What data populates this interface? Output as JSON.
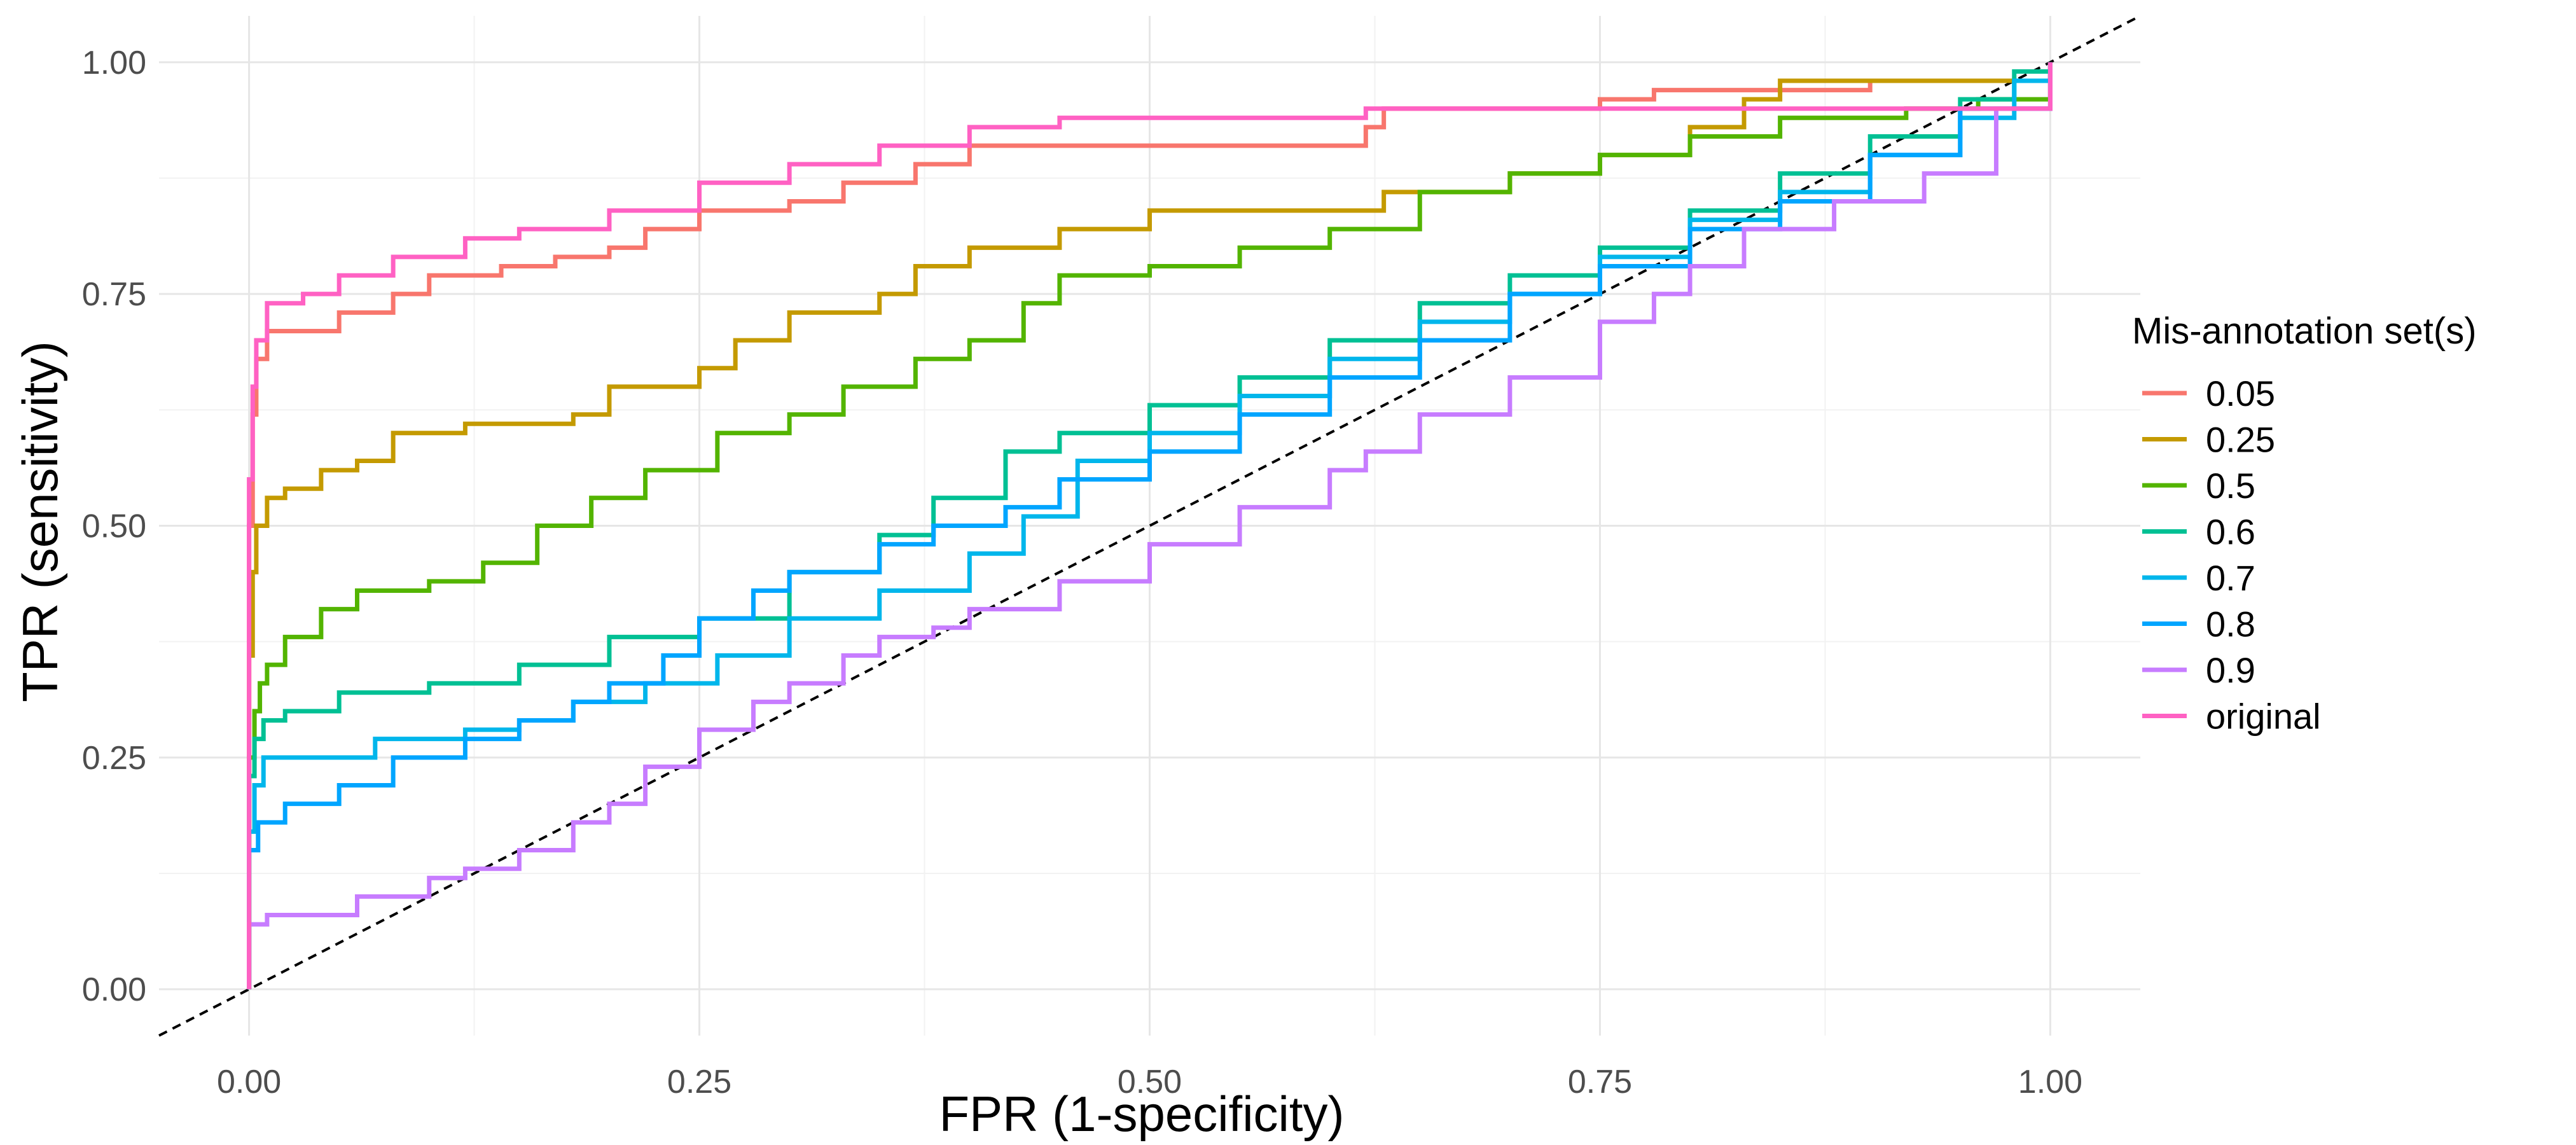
{
  "chart_data": {
    "type": "line",
    "title": "",
    "xlabel": "FPR (1-specificity)",
    "ylabel": "TPR (sensitivity)",
    "xlim": [
      -0.05,
      1.05
    ],
    "ylim": [
      -0.05,
      1.05
    ],
    "x_ticks": [
      0,
      0.25,
      0.5,
      0.75,
      1
    ],
    "x_tick_labels": [
      "0.00",
      "0.25",
      "0.50",
      "0.75",
      "1.00"
    ],
    "y_ticks": [
      0,
      0.25,
      0.5,
      0.75,
      1
    ],
    "y_tick_labels": [
      "0.00",
      "0.25",
      "0.50",
      "0.75",
      "1.00"
    ],
    "grid": true,
    "legend": {
      "title": "Mis-annotation set(s)",
      "position": "right"
    },
    "reference_line": {
      "style": "dashed",
      "color": "#000000",
      "slope": 1,
      "intercept": 0
    },
    "series": [
      {
        "name": "0.05",
        "color": "#F8766D",
        "points": [
          [
            0,
            0
          ],
          [
            0,
            0.5
          ],
          [
            0.002,
            0.62
          ],
          [
            0.004,
            0.68
          ],
          [
            0.01,
            0.71
          ],
          [
            0.03,
            0.71
          ],
          [
            0.05,
            0.73
          ],
          [
            0.08,
            0.75
          ],
          [
            0.1,
            0.77
          ],
          [
            0.14,
            0.78
          ],
          [
            0.17,
            0.79
          ],
          [
            0.2,
            0.8
          ],
          [
            0.22,
            0.82
          ],
          [
            0.25,
            0.84
          ],
          [
            0.3,
            0.85
          ],
          [
            0.33,
            0.87
          ],
          [
            0.37,
            0.89
          ],
          [
            0.4,
            0.91
          ],
          [
            0.5,
            0.91
          ],
          [
            0.55,
            0.91
          ],
          [
            0.6,
            0.91
          ],
          [
            0.62,
            0.93
          ],
          [
            0.63,
            0.95
          ],
          [
            0.7,
            0.95
          ],
          [
            0.75,
            0.96
          ],
          [
            0.78,
            0.97
          ],
          [
            0.85,
            0.97
          ],
          [
            0.9,
            0.98
          ],
          [
            1,
            1
          ]
        ]
      },
      {
        "name": "0.25",
        "color": "#C49A00",
        "points": [
          [
            0,
            0
          ],
          [
            0,
            0.36
          ],
          [
            0.002,
            0.45
          ],
          [
            0.004,
            0.5
          ],
          [
            0.01,
            0.53
          ],
          [
            0.02,
            0.54
          ],
          [
            0.04,
            0.56
          ],
          [
            0.06,
            0.57
          ],
          [
            0.08,
            0.6
          ],
          [
            0.12,
            0.61
          ],
          [
            0.18,
            0.62
          ],
          [
            0.2,
            0.65
          ],
          [
            0.25,
            0.67
          ],
          [
            0.27,
            0.7
          ],
          [
            0.3,
            0.73
          ],
          [
            0.35,
            0.75
          ],
          [
            0.37,
            0.78
          ],
          [
            0.4,
            0.8
          ],
          [
            0.45,
            0.82
          ],
          [
            0.5,
            0.84
          ],
          [
            0.6,
            0.84
          ],
          [
            0.63,
            0.86
          ],
          [
            0.7,
            0.88
          ],
          [
            0.75,
            0.9
          ],
          [
            0.8,
            0.93
          ],
          [
            0.83,
            0.96
          ],
          [
            0.85,
            0.98
          ],
          [
            0.95,
            0.98
          ],
          [
            1,
            1
          ]
        ]
      },
      {
        "name": "0.5",
        "color": "#53B400",
        "points": [
          [
            0,
            0
          ],
          [
            0,
            0.25
          ],
          [
            0.003,
            0.3
          ],
          [
            0.006,
            0.33
          ],
          [
            0.01,
            0.35
          ],
          [
            0.02,
            0.38
          ],
          [
            0.04,
            0.41
          ],
          [
            0.06,
            0.43
          ],
          [
            0.1,
            0.44
          ],
          [
            0.13,
            0.46
          ],
          [
            0.16,
            0.5
          ],
          [
            0.19,
            0.53
          ],
          [
            0.22,
            0.56
          ],
          [
            0.26,
            0.6
          ],
          [
            0.3,
            0.62
          ],
          [
            0.33,
            0.65
          ],
          [
            0.37,
            0.68
          ],
          [
            0.4,
            0.7
          ],
          [
            0.43,
            0.74
          ],
          [
            0.45,
            0.77
          ],
          [
            0.5,
            0.78
          ],
          [
            0.55,
            0.8
          ],
          [
            0.6,
            0.82
          ],
          [
            0.65,
            0.86
          ],
          [
            0.7,
            0.88
          ],
          [
            0.75,
            0.9
          ],
          [
            0.8,
            0.92
          ],
          [
            0.85,
            0.94
          ],
          [
            0.92,
            0.95
          ],
          [
            0.96,
            0.96
          ],
          [
            1,
            1
          ]
        ]
      },
      {
        "name": "0.6",
        "color": "#00C094",
        "points": [
          [
            0,
            0
          ],
          [
            0,
            0.23
          ],
          [
            0.003,
            0.27
          ],
          [
            0.008,
            0.29
          ],
          [
            0.02,
            0.3
          ],
          [
            0.05,
            0.32
          ],
          [
            0.1,
            0.33
          ],
          [
            0.15,
            0.35
          ],
          [
            0.2,
            0.38
          ],
          [
            0.25,
            0.4
          ],
          [
            0.3,
            0.45
          ],
          [
            0.35,
            0.49
          ],
          [
            0.38,
            0.53
          ],
          [
            0.42,
            0.58
          ],
          [
            0.45,
            0.6
          ],
          [
            0.5,
            0.63
          ],
          [
            0.55,
            0.66
          ],
          [
            0.6,
            0.7
          ],
          [
            0.65,
            0.74
          ],
          [
            0.7,
            0.77
          ],
          [
            0.75,
            0.8
          ],
          [
            0.8,
            0.84
          ],
          [
            0.85,
            0.88
          ],
          [
            0.9,
            0.92
          ],
          [
            0.95,
            0.96
          ],
          [
            0.98,
            0.99
          ],
          [
            1,
            1
          ]
        ]
      },
      {
        "name": "0.7",
        "color": "#00B6EB",
        "points": [
          [
            0,
            0
          ],
          [
            0,
            0.17
          ],
          [
            0.003,
            0.22
          ],
          [
            0.008,
            0.25
          ],
          [
            0.05,
            0.25
          ],
          [
            0.07,
            0.27
          ],
          [
            0.1,
            0.27
          ],
          [
            0.12,
            0.28
          ],
          [
            0.15,
            0.29
          ],
          [
            0.18,
            0.31
          ],
          [
            0.22,
            0.33
          ],
          [
            0.26,
            0.36
          ],
          [
            0.3,
            0.4
          ],
          [
            0.35,
            0.43
          ],
          [
            0.4,
            0.47
          ],
          [
            0.43,
            0.51
          ],
          [
            0.46,
            0.57
          ],
          [
            0.5,
            0.6
          ],
          [
            0.55,
            0.64
          ],
          [
            0.6,
            0.68
          ],
          [
            0.65,
            0.72
          ],
          [
            0.7,
            0.75
          ],
          [
            0.75,
            0.79
          ],
          [
            0.8,
            0.83
          ],
          [
            0.85,
            0.86
          ],
          [
            0.9,
            0.9
          ],
          [
            0.95,
            0.94
          ],
          [
            0.98,
            0.98
          ],
          [
            1,
            1
          ]
        ]
      },
      {
        "name": "0.8",
        "color": "#00A5FF",
        "points": [
          [
            0,
            0
          ],
          [
            0,
            0.15
          ],
          [
            0.005,
            0.18
          ],
          [
            0.02,
            0.2
          ],
          [
            0.05,
            0.22
          ],
          [
            0.08,
            0.25
          ],
          [
            0.12,
            0.27
          ],
          [
            0.15,
            0.29
          ],
          [
            0.18,
            0.31
          ],
          [
            0.2,
            0.33
          ],
          [
            0.23,
            0.36
          ],
          [
            0.25,
            0.4
          ],
          [
            0.28,
            0.43
          ],
          [
            0.3,
            0.45
          ],
          [
            0.35,
            0.48
          ],
          [
            0.38,
            0.5
          ],
          [
            0.42,
            0.52
          ],
          [
            0.45,
            0.55
          ],
          [
            0.5,
            0.58
          ],
          [
            0.55,
            0.62
          ],
          [
            0.6,
            0.66
          ],
          [
            0.65,
            0.7
          ],
          [
            0.7,
            0.75
          ],
          [
            0.75,
            0.78
          ],
          [
            0.8,
            0.82
          ],
          [
            0.85,
            0.85
          ],
          [
            0.9,
            0.9
          ],
          [
            0.95,
            0.95
          ],
          [
            1,
            1
          ]
        ]
      },
      {
        "name": "0.9",
        "color": "#C77CFF",
        "points": [
          [
            0,
            0
          ],
          [
            0,
            0.07
          ],
          [
            0.01,
            0.08
          ],
          [
            0.04,
            0.08
          ],
          [
            0.06,
            0.1
          ],
          [
            0.1,
            0.12
          ],
          [
            0.12,
            0.13
          ],
          [
            0.15,
            0.15
          ],
          [
            0.18,
            0.18
          ],
          [
            0.2,
            0.2
          ],
          [
            0.22,
            0.24
          ],
          [
            0.25,
            0.28
          ],
          [
            0.28,
            0.31
          ],
          [
            0.3,
            0.33
          ],
          [
            0.33,
            0.36
          ],
          [
            0.35,
            0.38
          ],
          [
            0.38,
            0.39
          ],
          [
            0.4,
            0.41
          ],
          [
            0.45,
            0.44
          ],
          [
            0.5,
            0.48
          ],
          [
            0.55,
            0.52
          ],
          [
            0.6,
            0.56
          ],
          [
            0.62,
            0.58
          ],
          [
            0.65,
            0.62
          ],
          [
            0.7,
            0.66
          ],
          [
            0.75,
            0.72
          ],
          [
            0.78,
            0.75
          ],
          [
            0.8,
            0.78
          ],
          [
            0.83,
            0.82
          ],
          [
            0.88,
            0.85
          ],
          [
            0.93,
            0.88
          ],
          [
            0.97,
            0.95
          ],
          [
            1,
            1
          ]
        ]
      },
      {
        "name": "original",
        "color": "#FF61C3",
        "points": [
          [
            0,
            0
          ],
          [
            0,
            0.55
          ],
          [
            0.002,
            0.65
          ],
          [
            0.004,
            0.7
          ],
          [
            0.01,
            0.74
          ],
          [
            0.03,
            0.75
          ],
          [
            0.05,
            0.77
          ],
          [
            0.08,
            0.79
          ],
          [
            0.12,
            0.81
          ],
          [
            0.15,
            0.82
          ],
          [
            0.2,
            0.84
          ],
          [
            0.25,
            0.87
          ],
          [
            0.3,
            0.89
          ],
          [
            0.35,
            0.91
          ],
          [
            0.4,
            0.93
          ],
          [
            0.45,
            0.94
          ],
          [
            0.5,
            0.94
          ],
          [
            0.6,
            0.94
          ],
          [
            0.62,
            0.95
          ],
          [
            0.7,
            0.95
          ],
          [
            0.8,
            0.95
          ],
          [
            0.9,
            0.95
          ],
          [
            1,
            1
          ]
        ]
      }
    ]
  }
}
